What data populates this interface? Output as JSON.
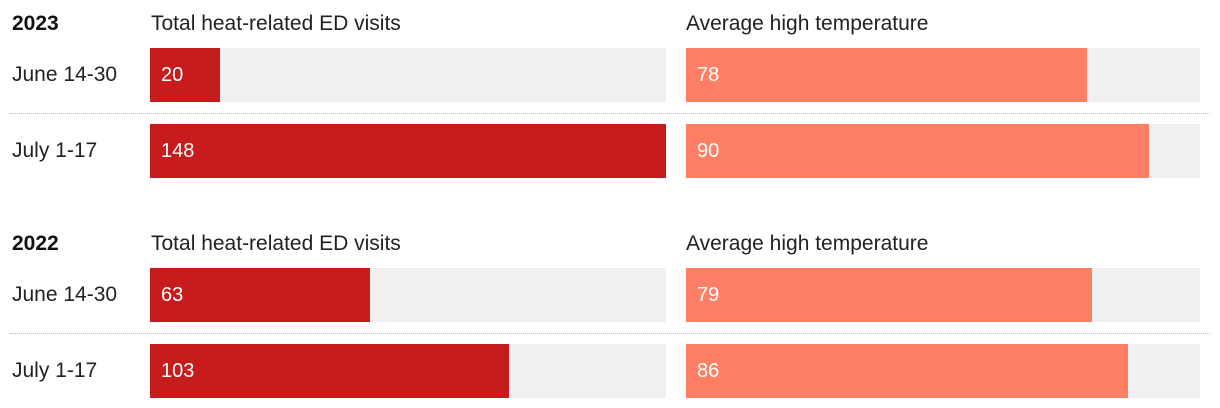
{
  "chart_data": {
    "type": "bar",
    "orientation": "horizontal",
    "layout": "small-multiples",
    "colors": {
      "visits": "#c61c1c",
      "temperature": "#ff7f66",
      "track": "#f0f0f0"
    },
    "columns": [
      {
        "key": "visits",
        "title": "Total heat-related ED visits",
        "xlim": [
          0,
          148
        ]
      },
      {
        "key": "temperature",
        "title": "Average high temperature",
        "xlim": [
          0,
          100
        ]
      }
    ],
    "groups": [
      {
        "year": "2023",
        "rows": [
          {
            "label": "June 14-30",
            "visits": 20,
            "temperature": 78
          },
          {
            "label": "July 1-17",
            "visits": 148,
            "temperature": 90
          }
        ]
      },
      {
        "year": "2022",
        "rows": [
          {
            "label": "June 14-30",
            "visits": 63,
            "temperature": 79
          },
          {
            "label": "July 1-17",
            "visits": 103,
            "temperature": 86
          }
        ]
      }
    ]
  }
}
